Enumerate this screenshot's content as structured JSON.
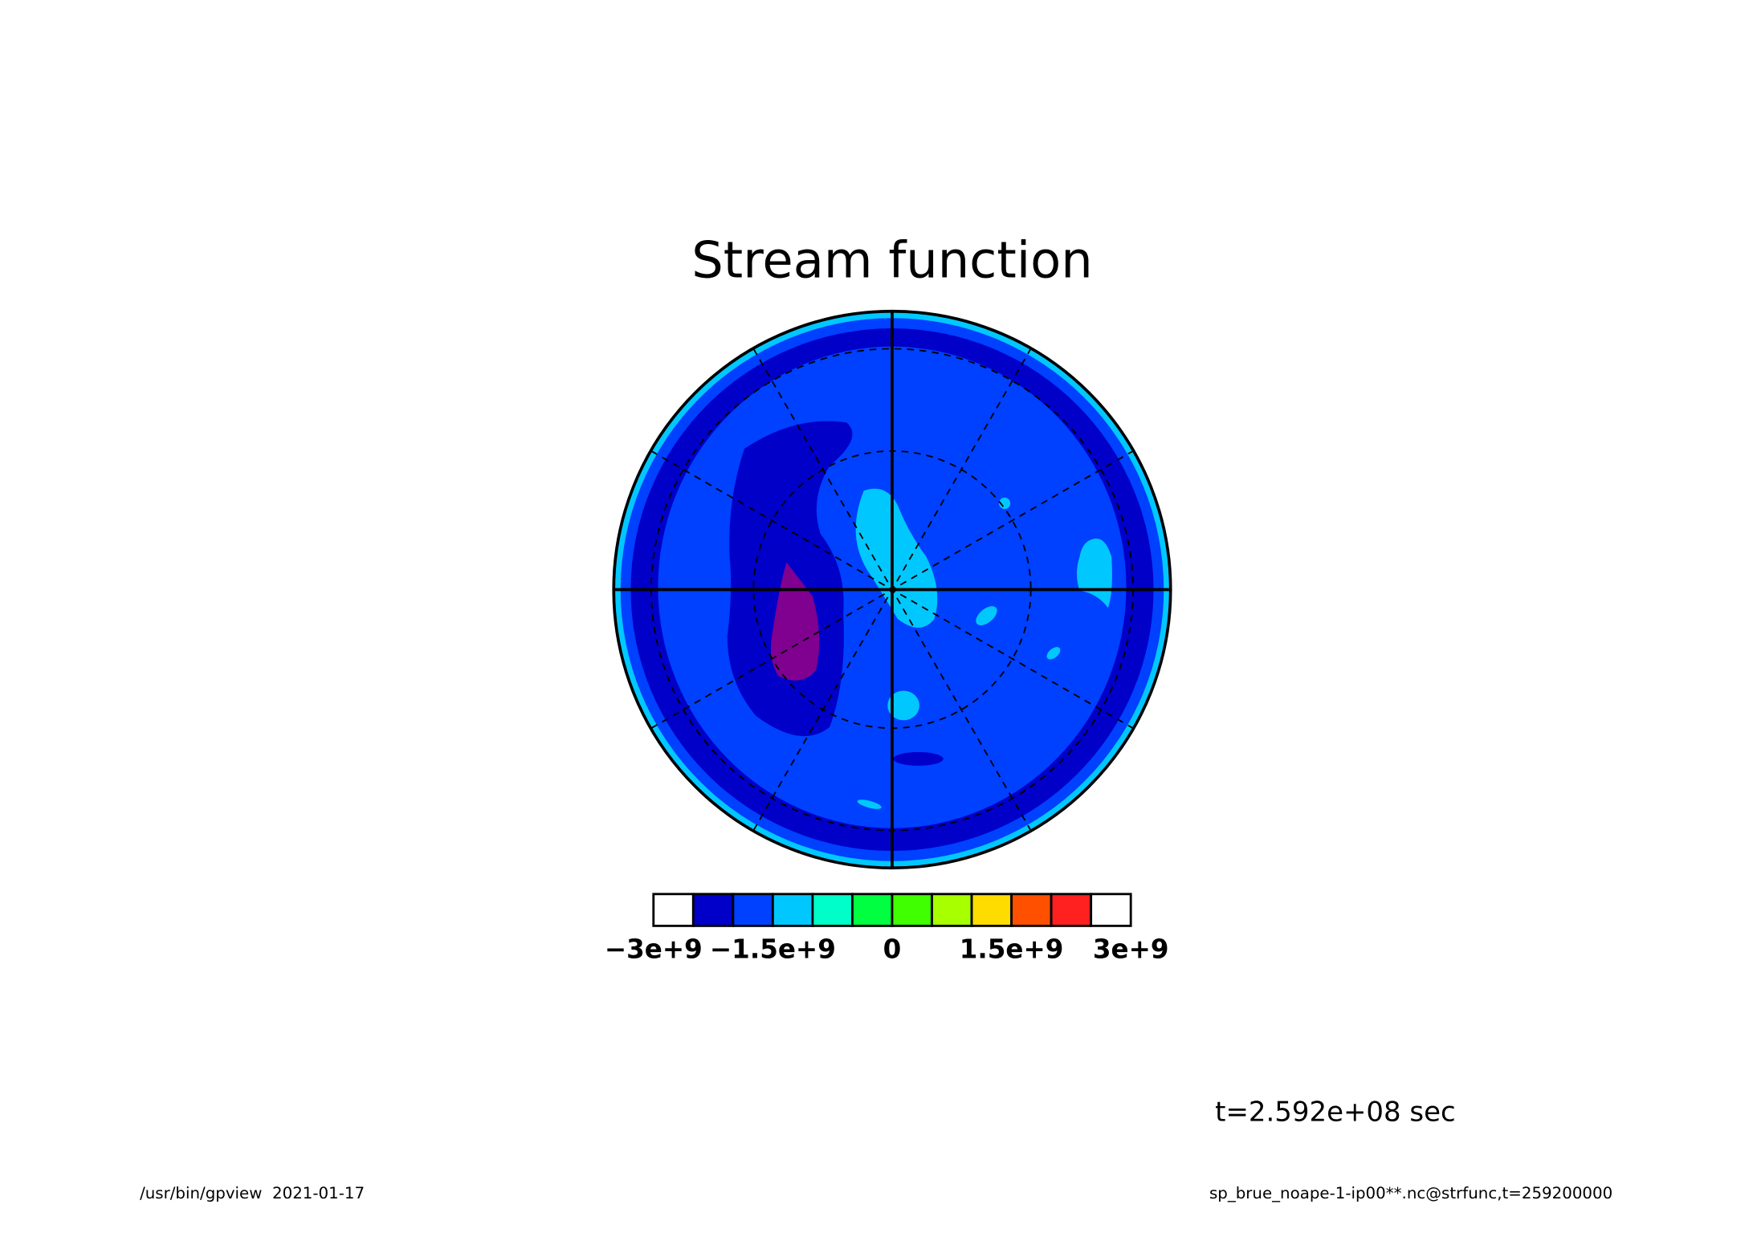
{
  "chart_data": {
    "type": "contour",
    "title": "Stream function",
    "projection": "polar",
    "colorbar": {
      "bounds": [
        -3000000000,
        -2500000000,
        -2000000000,
        -1500000000,
        -1000000000,
        -500000000,
        0,
        500000000,
        1000000000,
        1500000000,
        2000000000,
        2500000000,
        3000000000
      ],
      "colors": [
        "#ffffff",
        "#0000c8",
        "#0040ff",
        "#00c8ff",
        "#00ffc8",
        "#00ff40",
        "#40ff00",
        "#a8ff00",
        "#ffdc00",
        "#ff5000",
        "#ff2020",
        "#ffffff"
      ],
      "ticks": [
        {
          "value": -3000000000,
          "label": "−3e+9"
        },
        {
          "value": -1500000000,
          "label": "−1.5e+9"
        },
        {
          "value": 0,
          "label": "0"
        },
        {
          "value": 1500000000,
          "label": "1.5e+9"
        },
        {
          "value": 3000000000,
          "label": "3e+9"
        }
      ]
    },
    "annotation": "t=2.592e+08 sec",
    "footer_left": "/usr/bin/gpview  2021-01-17",
    "footer_right": "sp_brue_noape-1-ip00**.nc@strfunc,t=259200000"
  }
}
